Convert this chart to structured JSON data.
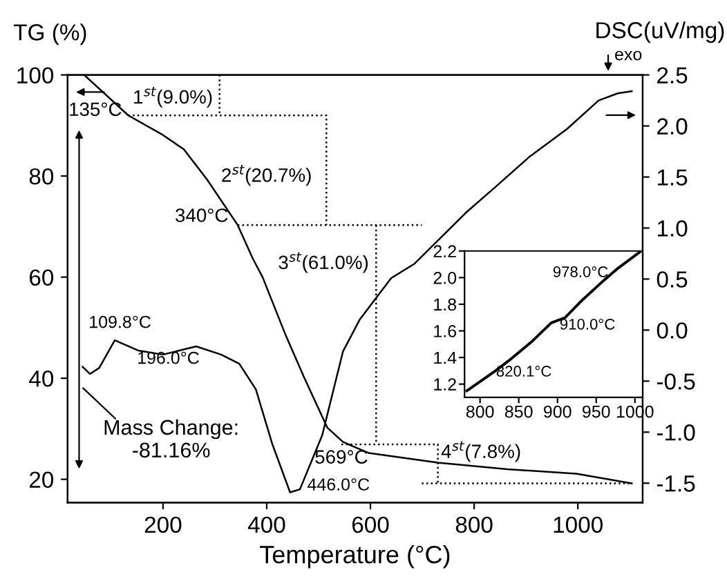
{
  "chart_data": [
    {
      "type": "line",
      "xlabel": "Temperature (°C)",
      "ylabel": "TG (%)",
      "y2label": "DSC(uV/mg)",
      "xlim": [
        16,
        1125
      ],
      "xticks": [
        200,
        400,
        600,
        800,
        1000
      ],
      "ylim": [
        15.4,
        100
      ],
      "yticks": [
        20,
        40,
        60,
        80,
        100
      ],
      "y2lim": [
        -1.69,
        2.5
      ],
      "y2ticks": [
        -1.5,
        {
          "value": -1,
          "label": "-1.0"
        },
        -0.5,
        {
          "value": 0,
          "label": "0.0"
        },
        0.5,
        {
          "value": 1,
          "label": "1.0"
        },
        1.5,
        {
          "value": 2,
          "label": "2.0"
        },
        2.5
      ],
      "grid": false,
      "legend": false,
      "marker": "none",
      "series": [
        {
          "color": "#000000",
          "axis": "y",
          "line_style": "solid",
          "x": [
            48,
            80,
            133,
            197,
            240,
            285,
            344,
            373,
            392,
            437,
            472,
            517,
            547,
            565,
            597,
            730,
            864,
            997,
            1104
          ],
          "values": [
            100,
            97,
            92,
            88.3,
            85.3,
            79.3,
            70.3,
            63.7,
            60,
            48.4,
            40.2,
            30.2,
            27.4,
            26.6,
            25.2,
            23.3,
            22,
            21.1,
            19.2
          ]
        },
        {
          "color": "#000000",
          "axis": "y2",
          "line_style": "solid",
          "x": [
            45,
            59,
            77,
            107,
            152,
            200,
            264,
            312,
            347,
            379,
            411,
            445,
            464,
            507,
            547,
            579,
            640,
            685,
            784,
            845,
            907,
            979,
            1040,
            1077,
            1104
          ],
          "values": [
            -0.36,
            -0.43,
            -0.37,
            -0.1,
            -0.2,
            -0.24,
            -0.16,
            -0.24,
            -0.33,
            -0.58,
            -1.12,
            -1.59,
            -1.56,
            -1.03,
            -0.21,
            0.1,
            0.51,
            0.65,
            1.15,
            1.42,
            1.7,
            1.97,
            2.25,
            2.32,
            2.34
          ]
        },
        {
          "color": "#000000",
          "axis": "y",
          "line_style": "dotted",
          "x": [
            309,
            309
          ],
          "values": [
            100,
            92
          ]
        },
        {
          "color": "#000000",
          "axis": "y",
          "line_style": "dotted",
          "x": [
            133,
            515,
            515
          ],
          "values": [
            92,
            92,
            70.3
          ]
        },
        {
          "color": "#000000",
          "axis": "y",
          "line_style": "dotted",
          "x": [
            344,
            699
          ],
          "values": [
            70.3,
            70.3
          ]
        },
        {
          "color": "#000000",
          "axis": "y",
          "line_style": "dotted",
          "x": [
            611,
            611
          ],
          "values": [
            70.3,
            26.9
          ]
        },
        {
          "color": "#000000",
          "axis": "y",
          "line_style": "dotted",
          "x": [
            544,
            730,
            730
          ],
          "values": [
            26.9,
            26.9,
            19.2
          ]
        },
        {
          "color": "#000000",
          "axis": "y",
          "line_style": "dotted",
          "x": [
            699,
            1104
          ],
          "values": [
            19.2,
            19.2
          ]
        }
      ],
      "annotations": [
        "1$^{st}$(9.0%)",
        "2$^{st}$(20.7%)",
        "3$^{st}$(61.0%)",
        "4$^{st}$(7.8%)",
        "135°C",
        "340°C",
        "569°C",
        "446.0°C",
        "109.8°C",
        "196.0°C",
        "Mass Change:\n-81.16%",
        "exo"
      ]
    },
    {
      "type": "line",
      "xlim": [
        780,
        1010
      ],
      "xticks": [
        800,
        850,
        900,
        950,
        1000
      ],
      "ylim": [
        1.1,
        2.2
      ],
      "yticks": [
        1.2,
        1.4,
        1.6,
        1.8,
        {
          "value": 2,
          "label": "2.0"
        },
        2.2
      ],
      "grid": false,
      "legend": false,
      "marker": "none",
      "series": [
        {
          "color": "#000000",
          "line_style": "solid",
          "x": [
            783,
            820,
            838,
            867,
            892,
            910,
            930,
            960,
            978,
            1008
          ],
          "values": [
            1.15,
            1.3,
            1.38,
            1.52,
            1.66,
            1.7,
            1.82,
            1.98,
            2.07,
            2.2
          ]
        }
      ],
      "annotations": [
        "978.0°C",
        "910.0°C",
        "820.1°C"
      ]
    }
  ]
}
